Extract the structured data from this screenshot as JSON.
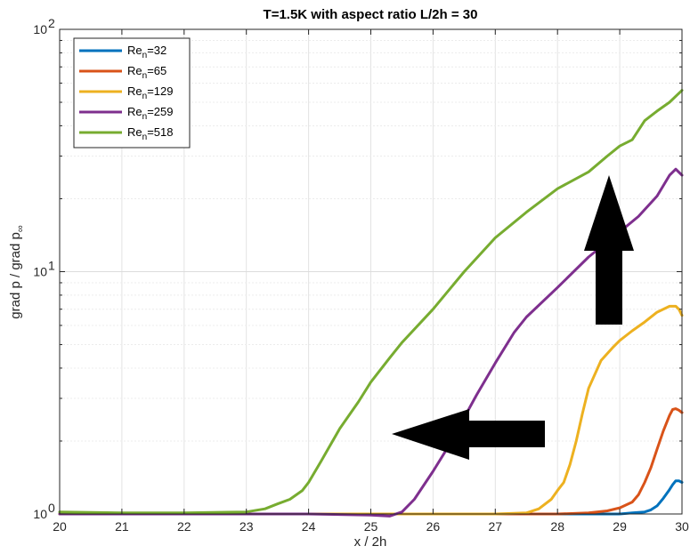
{
  "chart_data": {
    "type": "line",
    "title": "T=1.5K  with aspect ratio L/2h = 30",
    "xlabel": "x / 2h",
    "ylabel": "grad p / grad p∞",
    "xlim": [
      20,
      30
    ],
    "ylim": [
      1,
      100
    ],
    "yscale": "log",
    "grid": true,
    "legend_position": "top-left",
    "x_ticks": [
      20,
      21,
      22,
      23,
      24,
      25,
      26,
      27,
      28,
      29,
      30
    ],
    "x_tick_labels": [
      "20",
      "21",
      "22",
      "23",
      "24",
      "25",
      "26",
      "27",
      "28",
      "29",
      "30"
    ],
    "y_ticks": [
      {
        "value": 1,
        "base": "10",
        "exp": "0"
      },
      {
        "value": 10,
        "base": "10",
        "exp": "1"
      },
      {
        "value": 100,
        "base": "10",
        "exp": "2"
      }
    ],
    "series": [
      {
        "name": "Re_n=32",
        "label_main": "Re",
        "label_sub": "n",
        "label_rest": "=32",
        "color": "#0072BD",
        "x": [
          20,
          21,
          22,
          23,
          24,
          25,
          26,
          27,
          28,
          28.5,
          29,
          29.2,
          29.4,
          29.5,
          29.6,
          29.7,
          29.8,
          29.85,
          29.9,
          29.95,
          30
        ],
        "y": [
          1.0,
          1.0,
          1.0,
          1.0,
          1.0,
          1.0,
          1.0,
          1.0,
          1.0,
          1.0,
          1.0,
          1.01,
          1.02,
          1.04,
          1.08,
          1.16,
          1.26,
          1.32,
          1.37,
          1.37,
          1.35
        ]
      },
      {
        "name": "Re_n=65",
        "label_main": "Re",
        "label_sub": "n",
        "label_rest": "=65",
        "color": "#D95319",
        "x": [
          20,
          21,
          22,
          23,
          24,
          25,
          26,
          27,
          28,
          28.5,
          28.8,
          29.0,
          29.2,
          29.3,
          29.4,
          29.5,
          29.6,
          29.7,
          29.8,
          29.85,
          29.9,
          29.95,
          30
        ],
        "y": [
          1.0,
          1.0,
          1.0,
          1.0,
          1.0,
          1.0,
          1.0,
          1.0,
          1.0,
          1.01,
          1.03,
          1.06,
          1.12,
          1.2,
          1.35,
          1.55,
          1.85,
          2.2,
          2.55,
          2.7,
          2.72,
          2.68,
          2.62
        ]
      },
      {
        "name": "Re_n=129",
        "label_main": "Re",
        "label_sub": "n",
        "label_rest": "=129",
        "color": "#EDB120",
        "x": [
          20,
          21,
          22,
          23,
          24,
          25,
          26,
          27,
          27.5,
          27.7,
          27.9,
          28.0,
          28.1,
          28.2,
          28.3,
          28.4,
          28.5,
          28.7,
          28.9,
          29.0,
          29.2,
          29.4,
          29.6,
          29.8,
          29.9,
          29.95,
          30
        ],
        "y": [
          1.0,
          1.0,
          1.0,
          1.0,
          1.0,
          1.0,
          1.0,
          1.0,
          1.01,
          1.05,
          1.15,
          1.25,
          1.35,
          1.6,
          2.0,
          2.6,
          3.3,
          4.3,
          4.9,
          5.2,
          5.7,
          6.2,
          6.8,
          7.2,
          7.2,
          7.0,
          6.6
        ]
      },
      {
        "name": "Re_n=259",
        "label_main": "Re",
        "label_sub": "n",
        "label_rest": "=259",
        "color": "#7E2F8E",
        "x": [
          20,
          21,
          22,
          23,
          24,
          25,
          25.3,
          25.5,
          25.7,
          26.0,
          26.3,
          26.5,
          26.7,
          27.0,
          27.3,
          27.5,
          28.0,
          28.5,
          29.0,
          29.3,
          29.6,
          29.8,
          29.9,
          30
        ],
        "y": [
          1.0,
          1.0,
          1.0,
          1.0,
          1.0,
          0.99,
          0.98,
          1.02,
          1.15,
          1.5,
          2.0,
          2.5,
          3.1,
          4.2,
          5.6,
          6.5,
          8.6,
          11.5,
          14.6,
          16.9,
          20.5,
          25,
          26.5,
          25
        ]
      },
      {
        "name": "Re_n=518",
        "label_main": "Re",
        "label_sub": "n",
        "label_rest": "=518",
        "color": "#77AC30",
        "x": [
          20,
          21,
          22,
          23,
          23.3,
          23.5,
          23.7,
          23.9,
          24.0,
          24.2,
          24.5,
          24.8,
          25.0,
          25.3,
          25.5,
          26.0,
          26.5,
          27.0,
          27.5,
          28.0,
          28.5,
          28.8,
          29.0,
          29.2,
          29.4,
          29.6,
          29.8,
          30
        ],
        "y": [
          1.02,
          1.01,
          1.01,
          1.02,
          1.05,
          1.1,
          1.15,
          1.25,
          1.35,
          1.65,
          2.25,
          2.9,
          3.5,
          4.4,
          5.1,
          7.0,
          10.0,
          13.8,
          17.6,
          22.0,
          25.8,
          30,
          33,
          35,
          42,
          46,
          50,
          56
        ]
      }
    ],
    "annotations": [
      {
        "type": "arrow",
        "direction": "left",
        "color": "#000000"
      },
      {
        "type": "arrow",
        "direction": "up",
        "color": "#000000"
      }
    ]
  }
}
